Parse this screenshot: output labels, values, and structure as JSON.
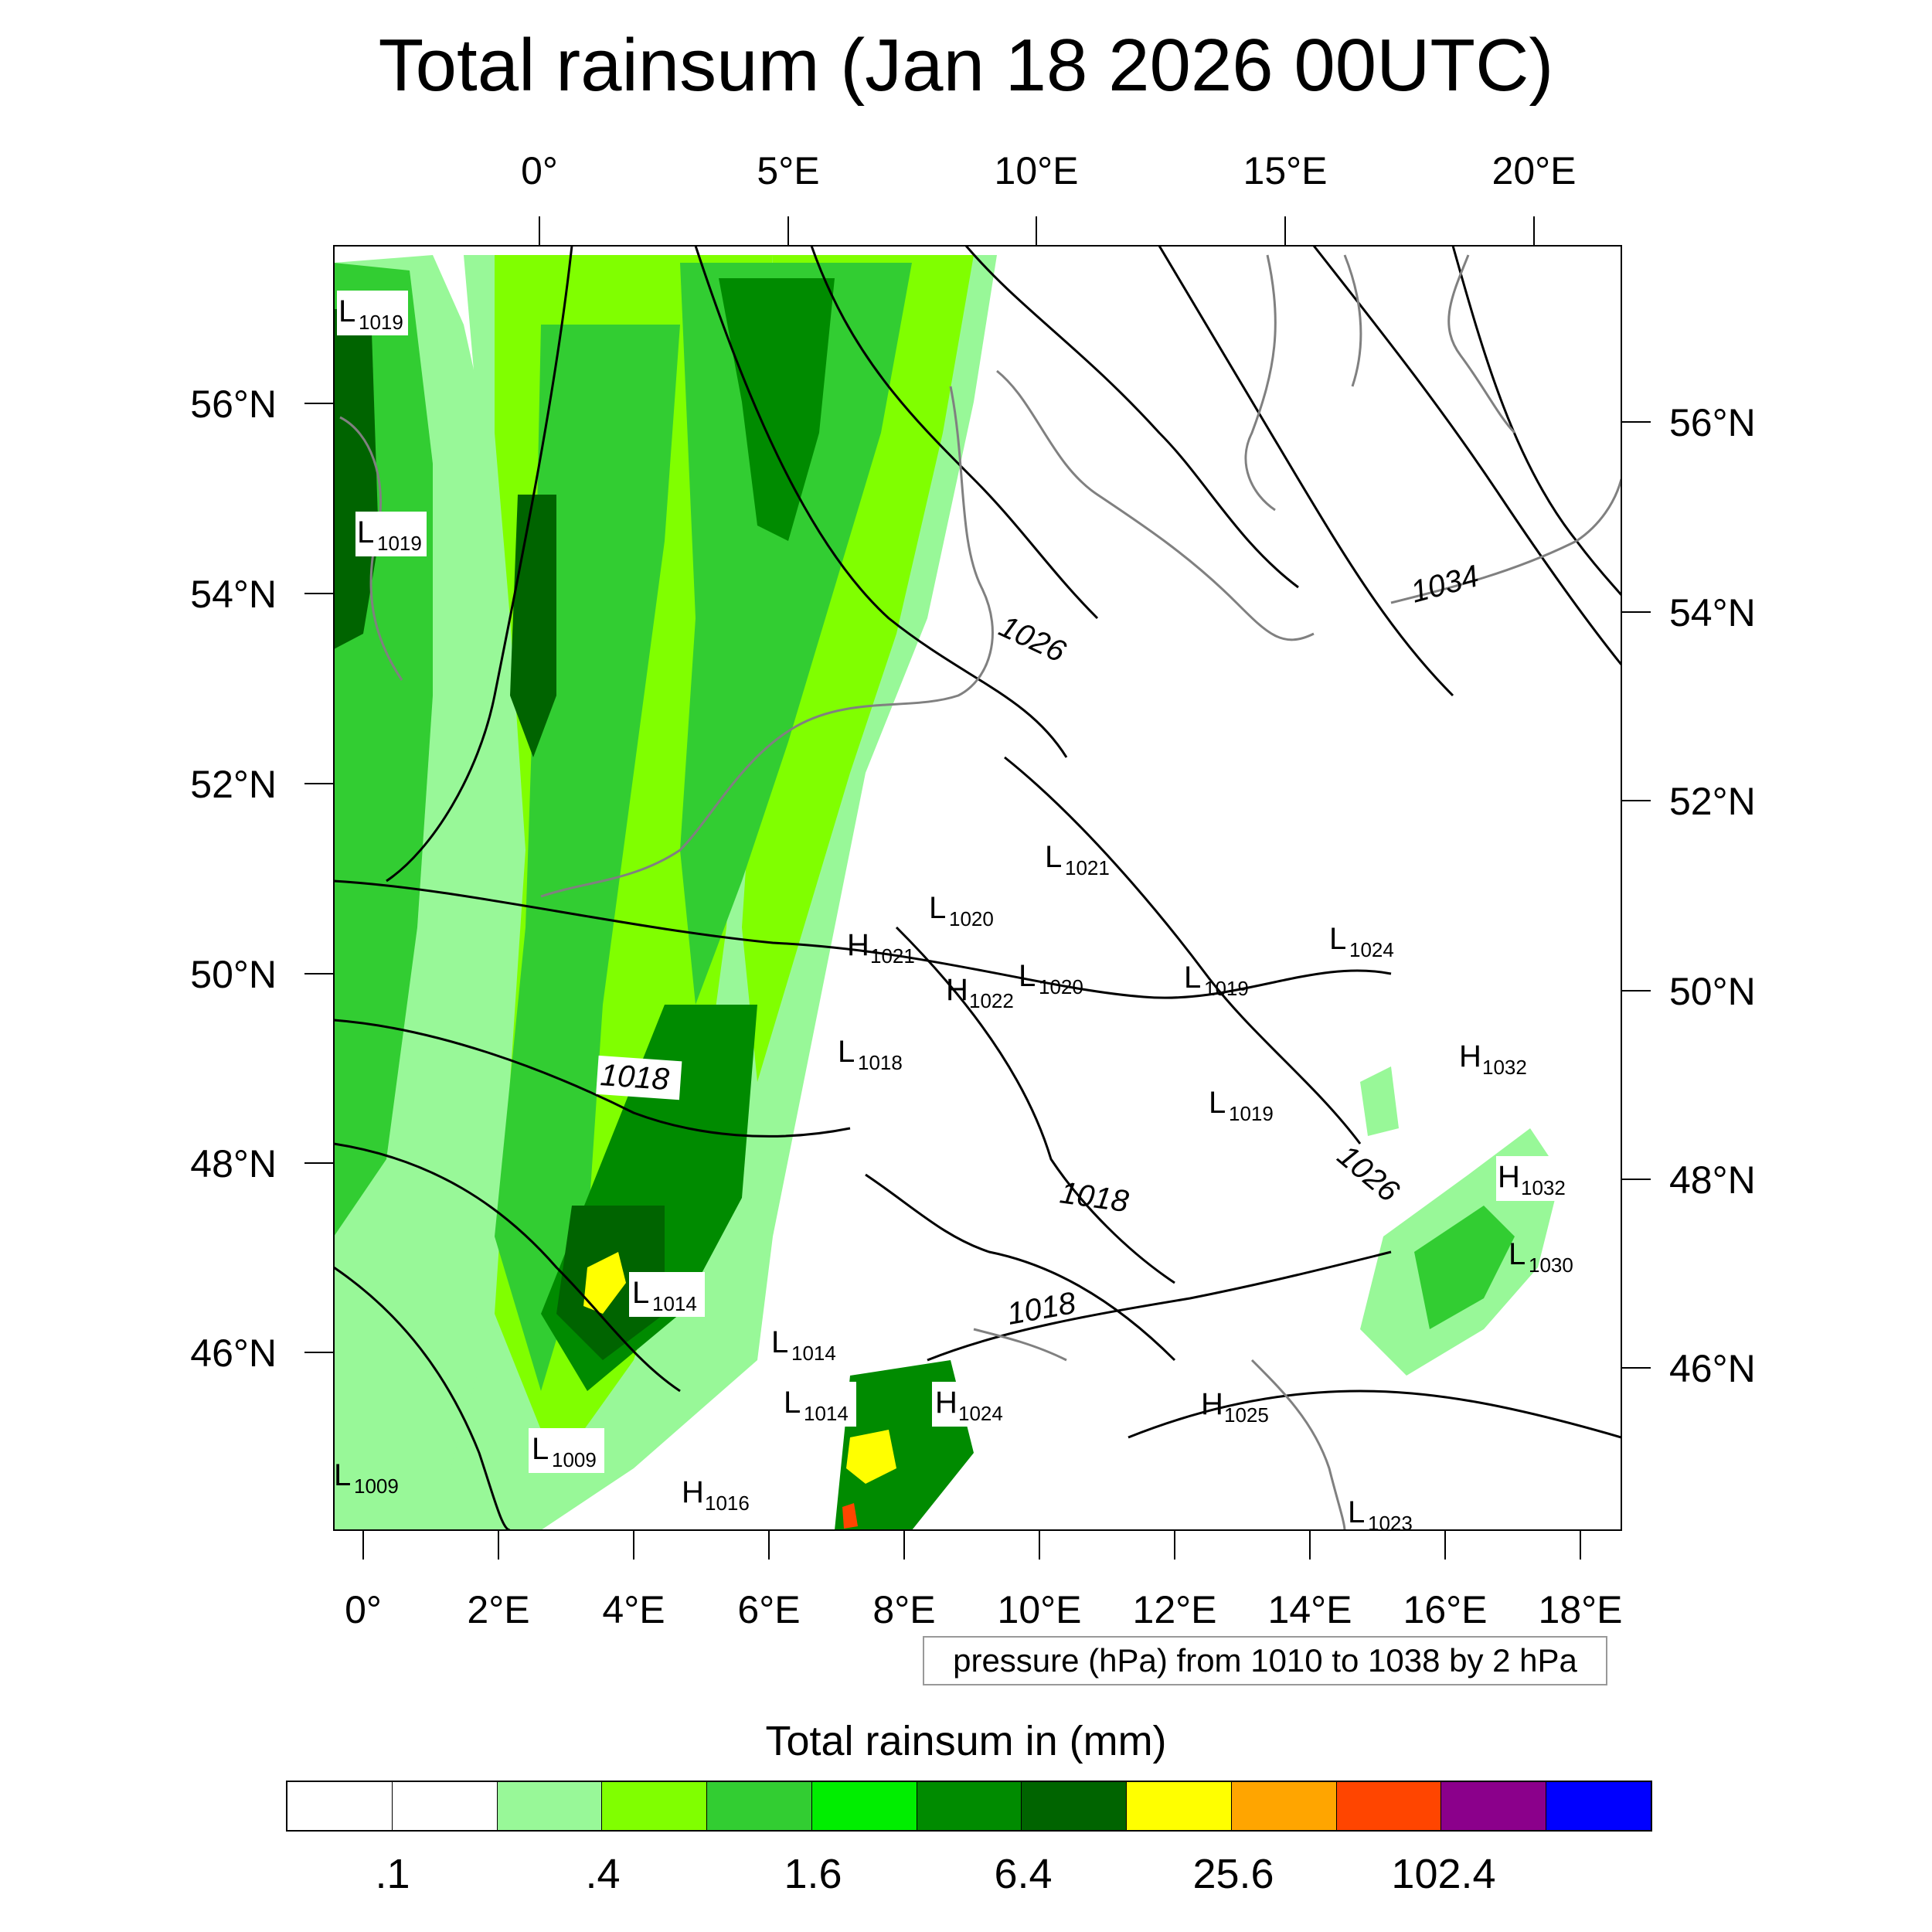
{
  "title": "Total rainsum (Jan 18 2026 00UTC)",
  "top_lon_labels": [
    "0°",
    "5°E",
    "10°E",
    "15°E",
    "20°E"
  ],
  "bottom_lon_labels": [
    "0°",
    "2°E",
    "4°E",
    "6°E",
    "8°E",
    "10°E",
    "12°E",
    "14°E",
    "16°E",
    "18°E"
  ],
  "left_lat_labels": [
    "56°N",
    "54°N",
    "52°N",
    "50°N",
    "48°N",
    "46°N"
  ],
  "right_lat_labels": [
    "56°N",
    "54°N",
    "52°N",
    "50°N",
    "48°N",
    "46°N"
  ],
  "contour_labels": [
    "1018",
    "1026",
    "1034",
    "1018",
    "1026",
    "1018"
  ],
  "pressure_centers": [
    {
      "type": "L",
      "value": "1019"
    },
    {
      "type": "L",
      "value": "1019"
    },
    {
      "type": "L",
      "value": "1021"
    },
    {
      "type": "L",
      "value": "1020"
    },
    {
      "type": "H",
      "value": "1021"
    },
    {
      "type": "L",
      "value": "1020"
    },
    {
      "type": "H",
      "value": "1022"
    },
    {
      "type": "L",
      "value": "1018"
    },
    {
      "type": "L",
      "value": "1019"
    },
    {
      "type": "L",
      "value": "1024"
    },
    {
      "type": "L",
      "value": "1019"
    },
    {
      "type": "H",
      "value": "1032"
    },
    {
      "type": "H",
      "value": "1032"
    },
    {
      "type": "L",
      "value": "1030"
    },
    {
      "type": "L",
      "value": "1014"
    },
    {
      "type": "L",
      "value": "1014"
    },
    {
      "type": "L",
      "value": "1014"
    },
    {
      "type": "H",
      "value": "1024"
    },
    {
      "type": "H",
      "value": "1025"
    },
    {
      "type": "L",
      "value": "1009"
    },
    {
      "type": "L",
      "value": "1009"
    },
    {
      "type": "H",
      "value": "1016"
    },
    {
      "type": "L",
      "value": "1023"
    }
  ],
  "pressure_note": "pressure (hPa) from 1010 to 1038 by 2 hPa",
  "colorbar": {
    "title": "Total rainsum in (mm)",
    "colors": [
      "#ffffff",
      "#ffffff",
      "#98f898",
      "#80ff00",
      "#32cd32",
      "#00ee00",
      "#008b00",
      "#006400",
      "#ffff00",
      "#ffa500",
      "#ff4500",
      "#8b008b",
      "#0000ff"
    ],
    "tick_labels": [
      ".1",
      ".4",
      "1.6",
      "6.4",
      "25.6",
      "102.4"
    ]
  }
}
